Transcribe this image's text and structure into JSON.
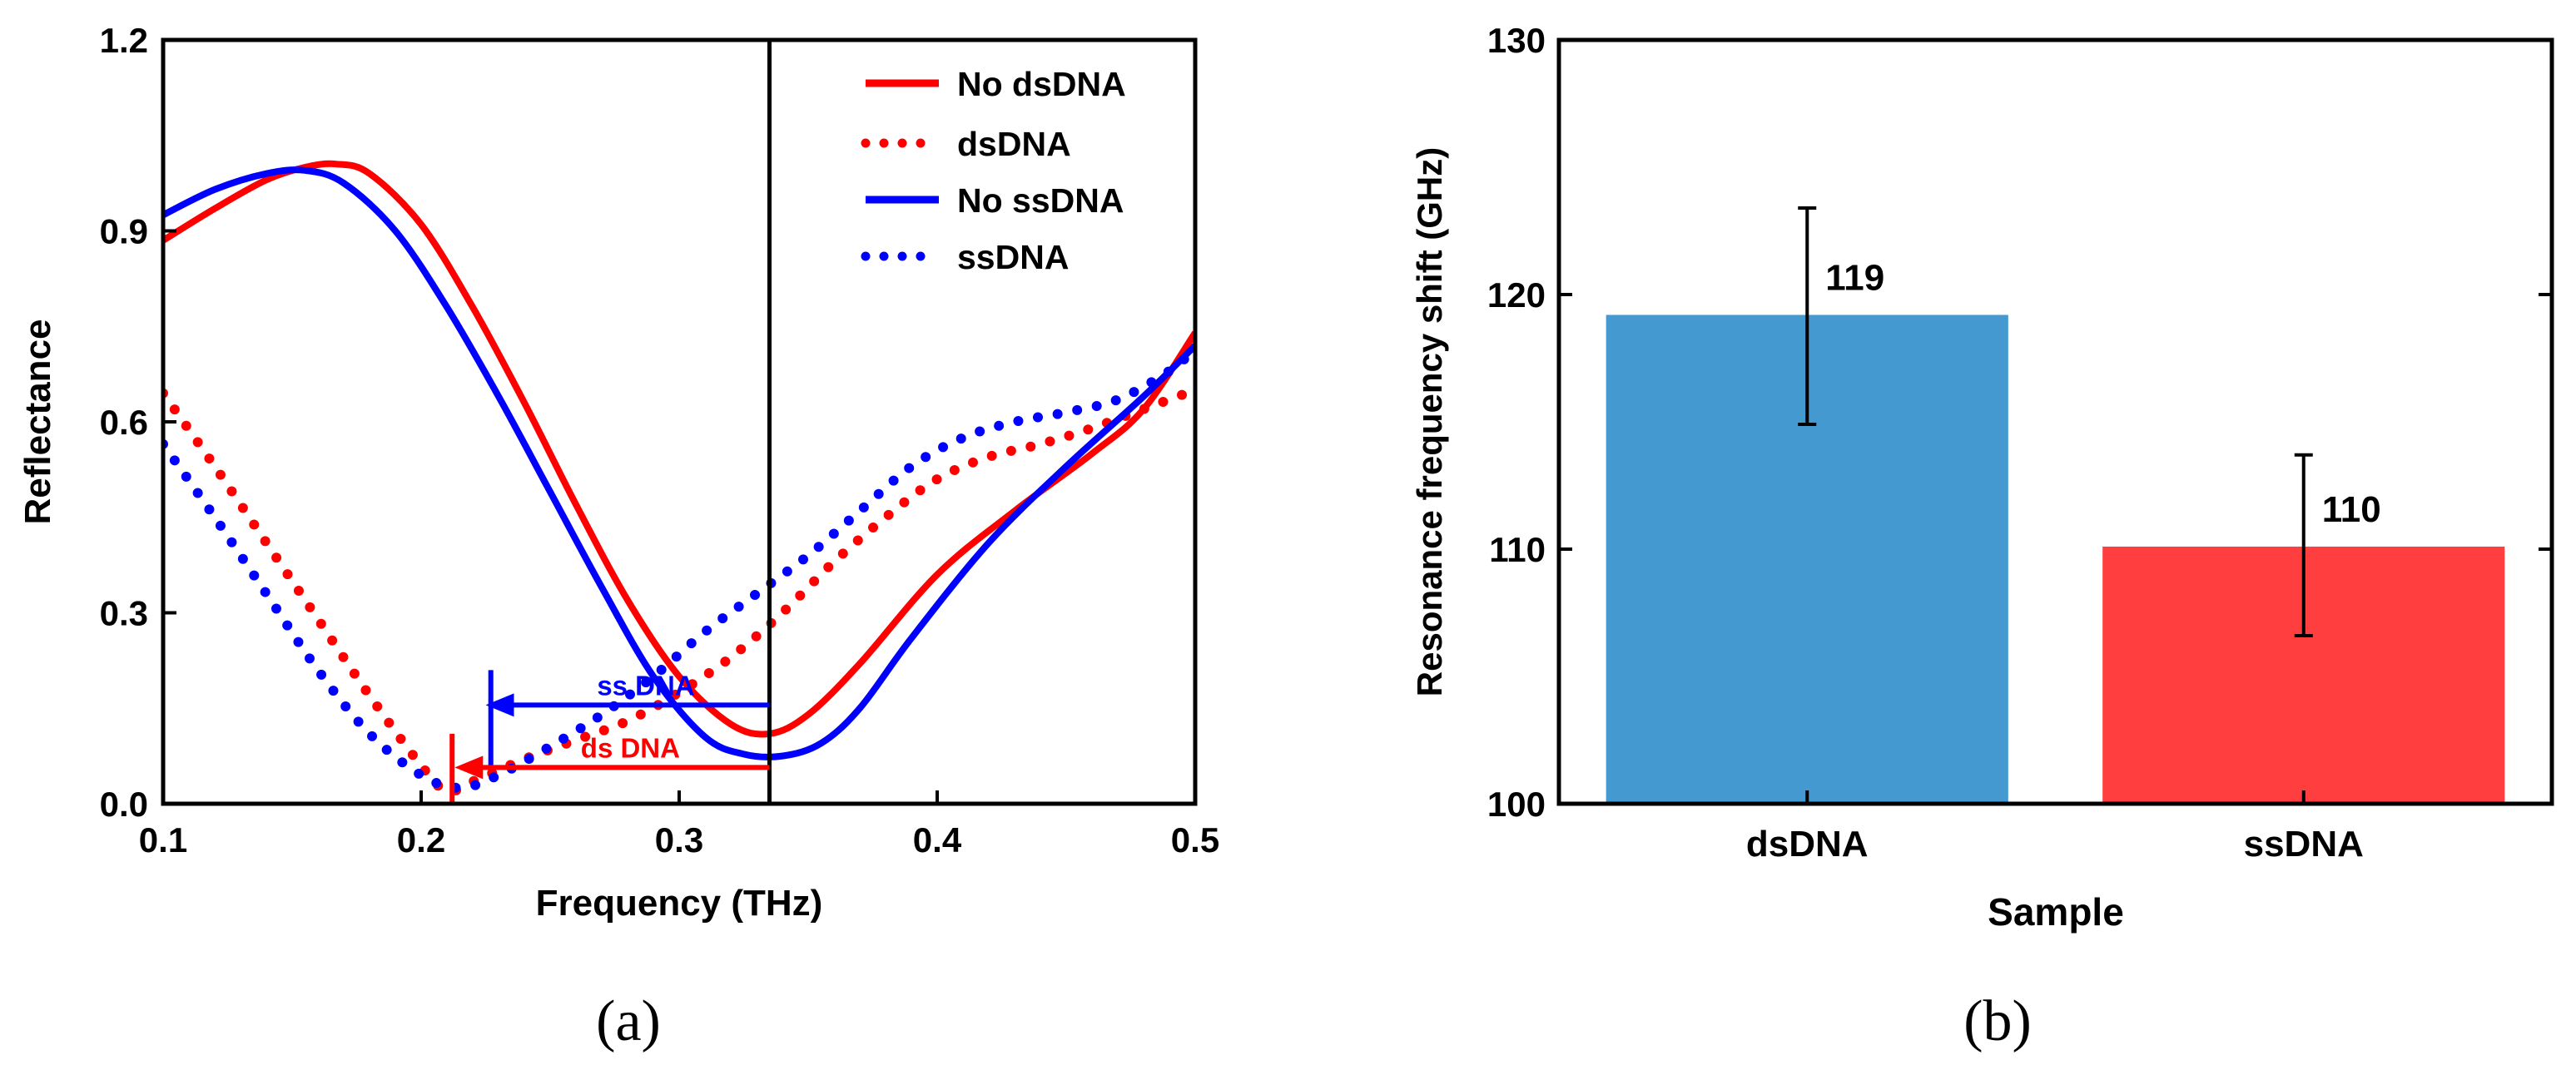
{
  "chart_data": [
    {
      "type": "line",
      "panel_label": "(a)",
      "xlabel": "Frequency (THz)",
      "ylabel": "Reflectance",
      "xlim": [
        0.1,
        0.5
      ],
      "ylim": [
        0.0,
        1.2
      ],
      "x_ticks": [
        "0.1",
        "0.2",
        "0.3",
        "0.4",
        "0.5"
      ],
      "x_tick_values": [
        0.1,
        0.2,
        0.3,
        0.4,
        0.5
      ],
      "y_ticks": [
        "0.0",
        "0.3",
        "0.6",
        "0.9",
        "1.2"
      ],
      "y_tick_values": [
        0.0,
        0.3,
        0.6,
        0.9,
        1.2
      ],
      "legend_position": "top-right",
      "series": [
        {
          "name": "No dsDNA",
          "color": "#ff0000",
          "style": "solid",
          "x": [
            0.1,
            0.12,
            0.14,
            0.155,
            0.167,
            0.18,
            0.2,
            0.22,
            0.24,
            0.26,
            0.28,
            0.3,
            0.32,
            0.335,
            0.35,
            0.37,
            0.4,
            0.43,
            0.46,
            0.48,
            0.5
          ],
          "y": [
            0.885,
            0.935,
            0.98,
            1.0,
            1.005,
            0.99,
            0.91,
            0.78,
            0.63,
            0.47,
            0.32,
            0.2,
            0.125,
            0.11,
            0.14,
            0.22,
            0.36,
            0.46,
            0.55,
            0.62,
            0.74
          ]
        },
        {
          "name": "dsDNA",
          "color": "#ff0000",
          "style": "dotted",
          "x": [
            0.1,
            0.12,
            0.14,
            0.16,
            0.18,
            0.2,
            0.21,
            0.22,
            0.24,
            0.26,
            0.28,
            0.3,
            0.32,
            0.34,
            0.36,
            0.38,
            0.4,
            0.42,
            0.44,
            0.46,
            0.48,
            0.5
          ],
          "y": [
            0.645,
            0.53,
            0.41,
            0.29,
            0.17,
            0.06,
            0.02,
            0.035,
            0.07,
            0.1,
            0.13,
            0.175,
            0.23,
            0.3,
            0.38,
            0.45,
            0.51,
            0.545,
            0.565,
            0.59,
            0.62,
            0.65
          ]
        },
        {
          "name": "No ssDNA",
          "color": "#0000ff",
          "style": "solid",
          "x": [
            0.1,
            0.12,
            0.14,
            0.155,
            0.17,
            0.19,
            0.21,
            0.23,
            0.25,
            0.27,
            0.29,
            0.31,
            0.325,
            0.34,
            0.355,
            0.37,
            0.39,
            0.42,
            0.45,
            0.48,
            0.5
          ],
          "y": [
            0.925,
            0.965,
            0.99,
            0.995,
            0.975,
            0.9,
            0.78,
            0.64,
            0.49,
            0.34,
            0.2,
            0.105,
            0.078,
            0.075,
            0.095,
            0.15,
            0.26,
            0.41,
            0.53,
            0.64,
            0.72
          ]
        },
        {
          "name": "ssDNA",
          "color": "#0000ff",
          "style": "dotted",
          "x": [
            0.1,
            0.12,
            0.14,
            0.16,
            0.18,
            0.2,
            0.215,
            0.23,
            0.25,
            0.27,
            0.29,
            0.31,
            0.33,
            0.35,
            0.37,
            0.39,
            0.41,
            0.43,
            0.45,
            0.47,
            0.49,
            0.5
          ],
          "y": [
            0.565,
            0.45,
            0.33,
            0.21,
            0.11,
            0.045,
            0.025,
            0.045,
            0.09,
            0.14,
            0.2,
            0.27,
            0.33,
            0.39,
            0.46,
            0.53,
            0.575,
            0.6,
            0.615,
            0.635,
            0.68,
            0.715
          ]
        }
      ],
      "annotations": {
        "vertical_line_x": 0.335,
        "ss_arrow": {
          "label": "ss DNA",
          "color": "#0000ff",
          "from_x": 0.335,
          "to_x": 0.225,
          "y": 0.155,
          "marker_x": 0.227,
          "marker_y_range": [
            0.06,
            0.21
          ]
        },
        "ds_arrow": {
          "label": "ds DNA",
          "color": "#ff0000",
          "from_x": 0.335,
          "to_x": 0.213,
          "y": 0.057,
          "marker_x": 0.212,
          "marker_y_range": [
            0.0,
            0.11
          ]
        }
      }
    },
    {
      "type": "bar",
      "panel_label": "(b)",
      "xlabel": "Sample",
      "ylabel": "Resonance frequency shift (GHz)",
      "ylim": [
        100,
        130
      ],
      "y_ticks": [
        "100",
        "110",
        "120",
        "130"
      ],
      "y_tick_values": [
        100,
        110,
        120,
        130
      ],
      "categories": [
        "dsDNA",
        "ssDNA"
      ],
      "values": [
        119.2,
        110.1
      ],
      "value_labels": [
        "119",
        "110"
      ],
      "error_low": [
        114.9,
        106.6
      ],
      "error_high": [
        123.4,
        113.7
      ],
      "colors": [
        "#4499d0",
        "#ff3f3f"
      ]
    }
  ]
}
